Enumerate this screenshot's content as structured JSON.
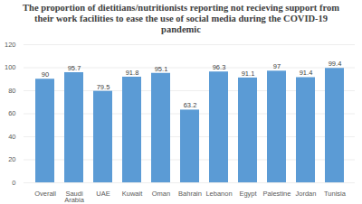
{
  "chart_data": {
    "type": "bar",
    "title": "The proportion of dietitians/nutritionists reporting not recieving support from their work facilities to ease the use of social media during the COVID-19 pandemic",
    "categories": [
      "Overall",
      "Saudi Arabia",
      "UAE",
      "Kuwait",
      "Oman",
      "Bahrain",
      "Lebanon",
      "Egypt",
      "Palestine",
      "Jordan",
      "Tunisia"
    ],
    "values": [
      90,
      95.7,
      79.5,
      91.8,
      95.1,
      63.2,
      96.3,
      91.1,
      97,
      91.4,
      99.4
    ],
    "color": "#5b9bd5",
    "ylim": [
      0,
      120
    ],
    "yticks": [
      0,
      20,
      40,
      60,
      80,
      100,
      120
    ],
    "grid": true,
    "data_labels": true
  }
}
